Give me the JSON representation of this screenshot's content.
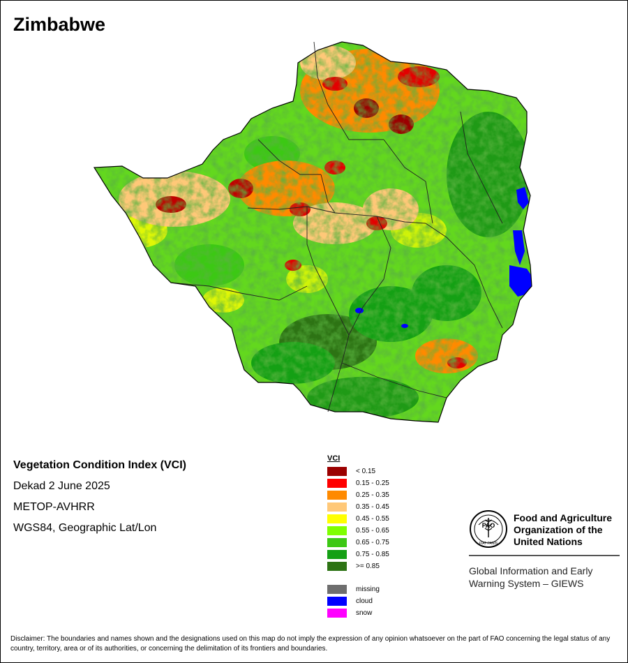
{
  "map": {
    "title": "Zimbabwe",
    "info_lines": [
      "Vegetation Condition Index (VCI)",
      "Dekad 2 June 2025",
      "METOP-AVHRR",
      "WGS84, Geographic Lat/Lon"
    ]
  },
  "legend": {
    "title": "VCI",
    "classes": [
      {
        "label": "< 0.15",
        "color": "#9b0000"
      },
      {
        "label": "0.15 - 0.25",
        "color": "#ff0000"
      },
      {
        "label": "0.25 - 0.35",
        "color": "#ff8a00"
      },
      {
        "label": "0.35 - 0.45",
        "color": "#ffc878"
      },
      {
        "label": "0.45 - 0.55",
        "color": "#ffff00"
      },
      {
        "label": "0.55 - 0.65",
        "color": "#7fff00"
      },
      {
        "label": "0.65 - 0.75",
        "color": "#3cc814"
      },
      {
        "label": "0.75 - 0.85",
        "color": "#14a014"
      },
      {
        "label": ">= 0.85",
        "color": "#2d7314"
      }
    ],
    "other": [
      {
        "label": "missing",
        "color": "#6e6e6e"
      },
      {
        "label": "cloud",
        "color": "#0000ff"
      },
      {
        "label": "snow",
        "color": "#ff00ff"
      }
    ]
  },
  "logo": {
    "org_name": [
      "Food and Agriculture",
      "Organization of the",
      "United Nations"
    ],
    "emblem_text": "FAO",
    "motto_text": "FIAT PANIS",
    "program": [
      "Global Information and Early",
      "Warning System – GIEWS"
    ]
  },
  "disclaimer": "Disclaimer: The boundaries and names shown and the designations used on this map do not imply the expression of any opinion whatsoever on the part of FAO concerning the legal status of any country, territory, area or of its authorities, or concerning the delimitation of its frontiers and boundaries."
}
